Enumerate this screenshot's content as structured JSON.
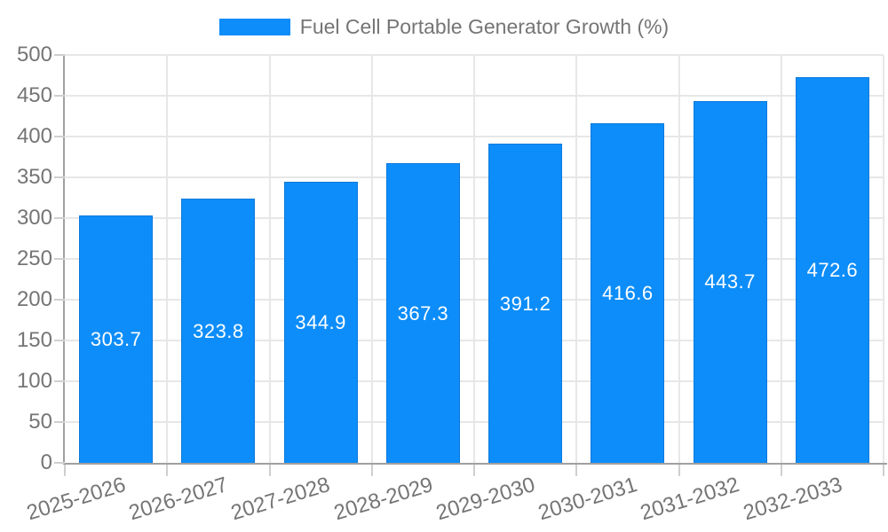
{
  "chart_data": {
    "type": "bar",
    "title": "",
    "categories": [
      "2025-2026",
      "2026-2027",
      "2027-2028",
      "2028-2029",
      "2029-2030",
      "2030-2031",
      "2031-2032",
      "2032-2033"
    ],
    "series": [
      {
        "name": "Fuel Cell Portable Generator Growth (%)",
        "values": [
          303.7,
          323.8,
          344.9,
          367.3,
          391.2,
          416.6,
          443.7,
          472.6
        ]
      }
    ],
    "value_labels": [
      "303.7",
      "323.8",
      "344.9",
      "367.3",
      "391.2",
      "416.6",
      "443.7",
      "472.6"
    ],
    "yticks": [
      0,
      50,
      100,
      150,
      200,
      250,
      300,
      350,
      400,
      450,
      500
    ],
    "ylim": [
      0,
      500
    ],
    "xlabel": "",
    "ylabel": "",
    "grid": true,
    "legend_position": "top",
    "colors": {
      "bar": "#0d8df9",
      "bar_border": "#0b7add",
      "axis": "#a0a0a0",
      "grid": "#e7e7e7",
      "tick": "#cfcfcf",
      "tick_text": "#757575",
      "bar_label_text": "#ffffff",
      "background": "#ffffff"
    }
  }
}
